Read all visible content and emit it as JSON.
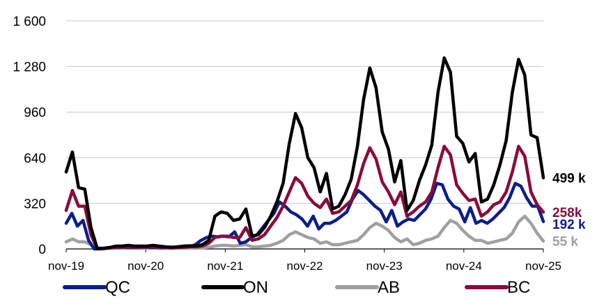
{
  "chart_data": {
    "type": "line",
    "title": "",
    "xlabel": "",
    "ylabel": "",
    "ylim": [
      0,
      1600
    ],
    "yticks": [
      0,
      320,
      640,
      960,
      1280,
      1600
    ],
    "ytick_labels": [
      "0",
      "320",
      "640",
      "960",
      "1 280",
      "1 600"
    ],
    "x_start": "2019-11",
    "x_end": "2025-11",
    "xtick_labels": [
      "nov-19",
      "nov-20",
      "nov-21",
      "nov-22",
      "nov-23",
      "nov-24",
      "nov-25"
    ],
    "grid": "horizontal",
    "legend": "bottom",
    "series": [
      {
        "name": "QC",
        "color": "#0a1e8c",
        "end_label": "192 k",
        "values": [
          180,
          250,
          160,
          200,
          60,
          0,
          0,
          5,
          10,
          10,
          12,
          10,
          10,
          10,
          12,
          10,
          10,
          8,
          10,
          10,
          12,
          12,
          15,
          30,
          60,
          80,
          90,
          85,
          90,
          85,
          120,
          40,
          50,
          80,
          100,
          150,
          200,
          250,
          330,
          300,
          260,
          240,
          210,
          160,
          230,
          140,
          180,
          180,
          200,
          230,
          260,
          350,
          410,
          380,
          340,
          300,
          270,
          190,
          270,
          160,
          190,
          210,
          200,
          240,
          280,
          350,
          460,
          450,
          350,
          300,
          280,
          190,
          290,
          180,
          200,
          180,
          210,
          250,
          290,
          360,
          460,
          440,
          360,
          300,
          300,
          192
        ]
      },
      {
        "name": "ON",
        "color": "#000000",
        "end_label": "499 k",
        "values": [
          540,
          680,
          430,
          420,
          150,
          5,
          5,
          10,
          20,
          20,
          25,
          20,
          20,
          20,
          25,
          20,
          15,
          12,
          15,
          20,
          22,
          22,
          30,
          60,
          230,
          260,
          250,
          200,
          210,
          280,
          90,
          100,
          150,
          230,
          330,
          460,
          740,
          950,
          850,
          640,
          570,
          400,
          530,
          280,
          300,
          380,
          490,
          720,
          1050,
          1270,
          1130,
          820,
          700,
          470,
          620,
          270,
          340,
          480,
          590,
          730,
          1100,
          1340,
          1240,
          790,
          740,
          610,
          670,
          330,
          350,
          450,
          590,
          760,
          1100,
          1330,
          1220,
          800,
          780,
          499
        ]
      },
      {
        "name": "AB",
        "color": "#a0a0a0",
        "end_label": "55 k",
        "values": [
          50,
          70,
          50,
          50,
          30,
          0,
          0,
          3,
          5,
          5,
          5,
          5,
          5,
          5,
          5,
          5,
          5,
          4,
          5,
          5,
          6,
          6,
          8,
          12,
          20,
          25,
          25,
          20,
          25,
          30,
          15,
          15,
          20,
          25,
          40,
          60,
          100,
          120,
          100,
          80,
          70,
          40,
          50,
          30,
          30,
          40,
          50,
          60,
          100,
          150,
          180,
          160,
          130,
          80,
          50,
          70,
          30,
          40,
          60,
          70,
          90,
          150,
          200,
          180,
          130,
          90,
          60,
          60,
          40,
          50,
          60,
          70,
          110,
          190,
          230,
          180,
          110,
          55
        ]
      },
      {
        "name": "BC",
        "color": "#8b0a3c",
        "end_label": "258k",
        "values": [
          270,
          410,
          300,
          300,
          100,
          3,
          3,
          8,
          12,
          12,
          15,
          12,
          12,
          12,
          15,
          12,
          10,
          8,
          10,
          12,
          15,
          15,
          20,
          40,
          80,
          90,
          90,
          80,
          80,
          150,
          60,
          70,
          100,
          160,
          220,
          300,
          400,
          500,
          460,
          370,
          320,
          290,
          350,
          250,
          260,
          300,
          340,
          450,
          600,
          710,
          630,
          470,
          400,
          310,
          400,
          230,
          260,
          300,
          330,
          400,
          570,
          720,
          660,
          450,
          390,
          340,
          350,
          230,
          260,
          310,
          330,
          400,
          540,
          720,
          650,
          400,
          310,
          258
        ]
      }
    ]
  },
  "legend": [
    {
      "label": "QC"
    },
    {
      "label": "ON"
    },
    {
      "label": "AB"
    },
    {
      "label": "BC"
    }
  ]
}
